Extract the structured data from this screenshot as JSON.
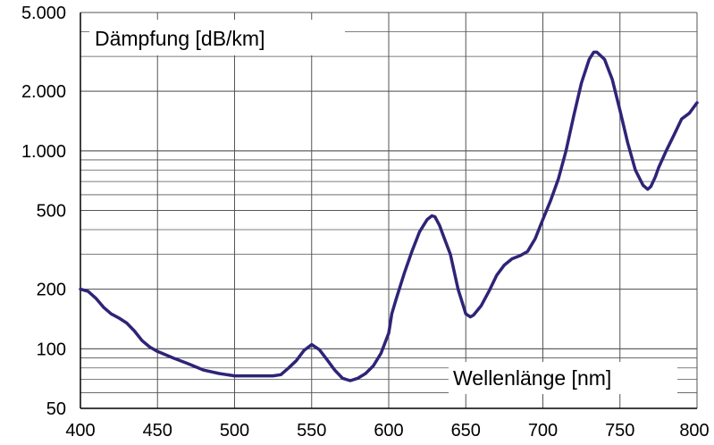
{
  "chart_data": {
    "type": "line",
    "title": "",
    "ylabel": "Dämpfung [dB/km]",
    "xlabel": "Wellenlänge [nm]",
    "yscale": "log",
    "ylim": [
      50,
      5000
    ],
    "xlim": [
      400,
      800
    ],
    "grid": true,
    "xticks": [
      "400",
      "450",
      "500",
      "550",
      "600",
      "650",
      "700",
      "750",
      "800"
    ],
    "yticks": [
      {
        "value": 5000,
        "label": "5.000"
      },
      {
        "value": 2000,
        "label": "2.000"
      },
      {
        "value": 1000,
        "label": "1.000"
      },
      {
        "value": 500,
        "label": "500"
      },
      {
        "value": 200,
        "label": "200"
      },
      {
        "value": 100,
        "label": "100"
      },
      {
        "value": 50,
        "label": "50"
      }
    ],
    "colors": {
      "line": "#2e2477",
      "grid": "#555555",
      "axis": "#000000"
    },
    "series": [
      {
        "x": [
          400,
          405,
          410,
          415,
          420,
          425,
          430,
          435,
          440,
          445,
          450,
          460,
          470,
          480,
          490,
          500,
          510,
          520,
          525,
          530,
          535,
          540,
          545,
          550,
          555,
          560,
          565,
          570,
          575,
          580,
          585,
          590,
          595,
          600,
          602,
          605,
          610,
          615,
          620,
          625,
          628,
          630,
          633,
          635,
          640,
          645,
          650,
          653,
          655,
          660,
          665,
          670,
          675,
          680,
          685,
          690,
          695,
          700,
          705,
          710,
          715,
          720,
          725,
          730,
          733,
          735,
          740,
          745,
          750,
          755,
          760,
          765,
          768,
          770,
          773,
          775,
          780,
          785,
          790,
          795,
          800
        ],
        "y": [
          200,
          195,
          180,
          162,
          150,
          143,
          135,
          123,
          110,
          102,
          97,
          90,
          84,
          78,
          75,
          73,
          73,
          73,
          73,
          74,
          80,
          87,
          98,
          105,
          99,
          88,
          78,
          71,
          69,
          71,
          75,
          82,
          95,
          120,
          150,
          180,
          240,
          310,
          390,
          450,
          470,
          465,
          420,
          380,
          300,
          200,
          150,
          145,
          148,
          165,
          195,
          235,
          265,
          285,
          295,
          310,
          360,
          450,
          560,
          720,
          1000,
          1500,
          2200,
          2900,
          3150,
          3150,
          2900,
          2300,
          1600,
          1100,
          800,
          670,
          640,
          660,
          740,
          820,
          1000,
          1200,
          1450,
          1550,
          1750
        ]
      }
    ]
  }
}
